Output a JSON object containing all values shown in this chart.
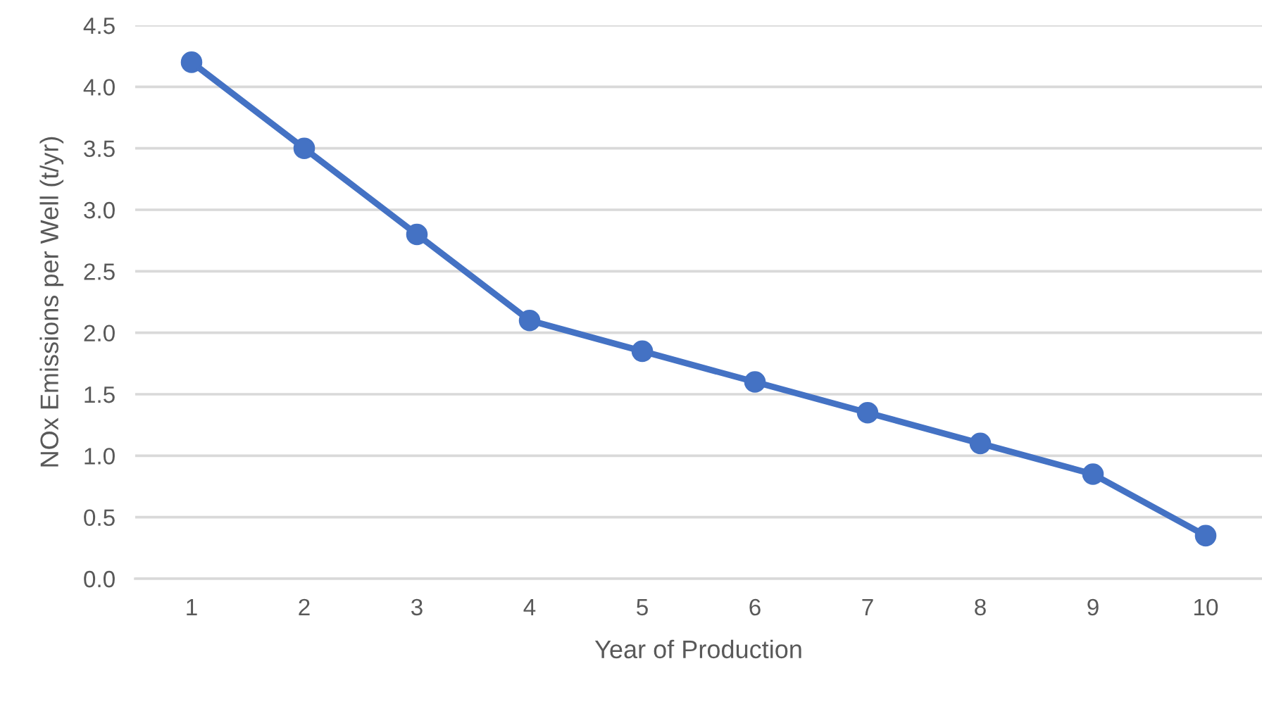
{
  "chart_data": {
    "type": "line",
    "xlabel": "Year of Production",
    "ylabel": "NOx Emissions per Well (t/yr)",
    "categories": [
      "1",
      "2",
      "3",
      "4",
      "5",
      "6",
      "7",
      "8",
      "9",
      "10"
    ],
    "series": [
      {
        "color": "#4472c4",
        "values": [
          4.2,
          3.5,
          2.8,
          2.1,
          1.85,
          1.6,
          1.35,
          1.1,
          0.85,
          0.35
        ]
      }
    ],
    "ylim": [
      0,
      4.5
    ],
    "yticks": [
      {
        "value": 0,
        "label": "0.0"
      },
      {
        "value": 0.5,
        "label": "0.5"
      },
      {
        "value": 1,
        "label": "1.0"
      },
      {
        "value": 1.5,
        "label": "1.5"
      },
      {
        "value": 2,
        "label": "2.0"
      },
      {
        "value": 2.5,
        "label": "2.5"
      },
      {
        "value": 3,
        "label": "3.0"
      },
      {
        "value": 3.5,
        "label": "3.5"
      },
      {
        "value": 4,
        "label": "4.0"
      },
      {
        "value": 4.5,
        "label": "4.5"
      }
    ],
    "grid": "y",
    "marker": "circle",
    "line_style": "solid"
  }
}
